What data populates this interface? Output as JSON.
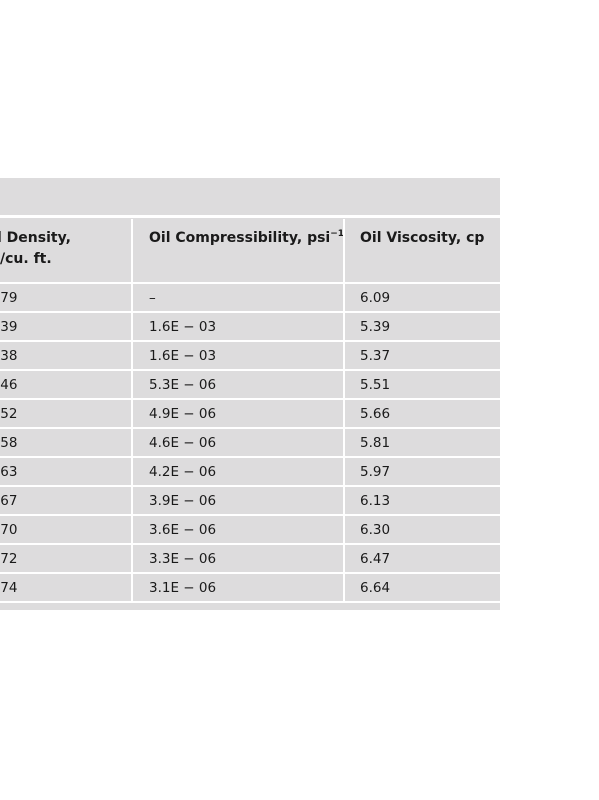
{
  "table": {
    "headers": {
      "density_line1": "l Density,",
      "density_line2": "/cu. ft.",
      "compressibility": "Oil Compressibility, psi",
      "compressibility_sup": "−1",
      "viscosity": "Oil Viscosity, cp"
    },
    "rows": [
      {
        "density": ".79",
        "compressibility": "–",
        "viscosity": "6.09"
      },
      {
        "density": ".39",
        "compressibility": "1.6E − 03",
        "viscosity": "5.39"
      },
      {
        "density": ".38",
        "compressibility": "1.6E − 03",
        "viscosity": "5.37"
      },
      {
        "density": ".46",
        "compressibility": "5.3E − 06",
        "viscosity": "5.51"
      },
      {
        "density": ".52",
        "compressibility": "4.9E − 06",
        "viscosity": "5.66"
      },
      {
        "density": ".58",
        "compressibility": "4.6E − 06",
        "viscosity": "5.81"
      },
      {
        "density": ".63",
        "compressibility": "4.2E − 06",
        "viscosity": "5.97"
      },
      {
        "density": ".67",
        "compressibility": "3.9E − 06",
        "viscosity": "6.13"
      },
      {
        "density": ".70",
        "compressibility": "3.6E − 06",
        "viscosity": "6.30"
      },
      {
        "density": ".72",
        "compressibility": "3.3E − 06",
        "viscosity": "6.47"
      },
      {
        "density": ".74",
        "compressibility": "3.1E − 06",
        "viscosity": "6.64"
      }
    ]
  }
}
